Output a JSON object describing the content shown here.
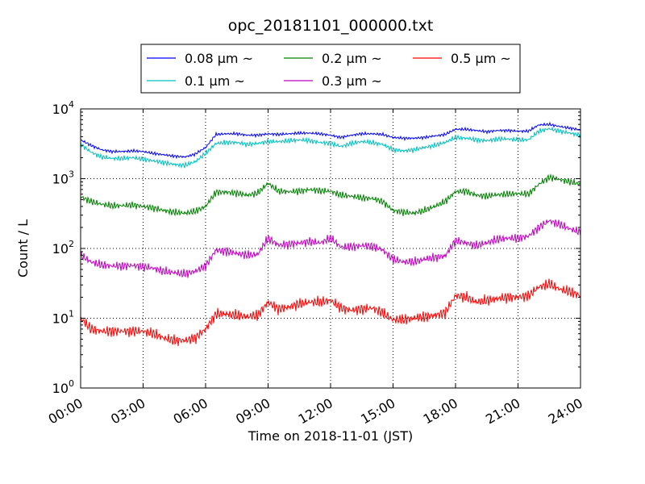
{
  "chart_data": {
    "type": "line",
    "title": "opc_20181101_000000.txt",
    "xlabel": "Time on 2018-11-01 (JST)",
    "ylabel": "Count / L",
    "x_unit": "hours",
    "xlim": [
      0,
      24
    ],
    "x_ticks": [
      {
        "value": 0,
        "label": "00:00"
      },
      {
        "value": 3,
        "label": "03:00"
      },
      {
        "value": 6,
        "label": "06:00"
      },
      {
        "value": 9,
        "label": "09:00"
      },
      {
        "value": 12,
        "label": "12:00"
      },
      {
        "value": 15,
        "label": "15:00"
      },
      {
        "value": 18,
        "label": "18:00"
      },
      {
        "value": 21,
        "label": "21:00"
      },
      {
        "value": 24,
        "label": "24:00"
      }
    ],
    "yscale": "log",
    "ylim": [
      1,
      10000
    ],
    "y_ticks": [
      {
        "value": 1,
        "base": "10",
        "exp": "0"
      },
      {
        "value": 10,
        "base": "10",
        "exp": "1"
      },
      {
        "value": 100,
        "base": "10",
        "exp": "2"
      },
      {
        "value": 1000,
        "base": "10",
        "exp": "3"
      },
      {
        "value": 10000,
        "base": "10",
        "exp": "4"
      }
    ],
    "grid": true,
    "legend_position": "top",
    "x": [
      0,
      0.5,
      1,
      1.5,
      2,
      2.5,
      3,
      3.5,
      4,
      4.5,
      5,
      5.5,
      6,
      6.5,
      7,
      7.5,
      8,
      8.5,
      9,
      9.5,
      10,
      10.5,
      11,
      11.5,
      12,
      12.5,
      13,
      13.5,
      14,
      14.5,
      15,
      15.5,
      16,
      16.5,
      17,
      17.5,
      18,
      18.5,
      19,
      19.5,
      20,
      20.5,
      21,
      21.5,
      22,
      22.5,
      23,
      23.5,
      24
    ],
    "series": [
      {
        "name": "0.08 μm ~",
        "color": "#0000ff",
        "values": [
          3600,
          3000,
          2600,
          2450,
          2450,
          2500,
          2450,
          2300,
          2200,
          2100,
          2050,
          2250,
          2800,
          4300,
          4400,
          4400,
          4200,
          4200,
          4400,
          4300,
          4400,
          4500,
          4500,
          4400,
          4200,
          3900,
          4200,
          4400,
          4400,
          4300,
          3900,
          3800,
          3800,
          3900,
          4100,
          4300,
          5100,
          5100,
          4900,
          4700,
          4900,
          4900,
          4800,
          4800,
          5900,
          6000,
          5600,
          5300,
          5000
        ]
      },
      {
        "name": "0.1 μm ~",
        "color": "#00bfbf",
        "values": [
          3100,
          2400,
          2050,
          1950,
          1950,
          2000,
          1900,
          1800,
          1700,
          1600,
          1550,
          1750,
          2300,
          3200,
          3300,
          3300,
          3100,
          3200,
          3400,
          3400,
          3500,
          3600,
          3500,
          3300,
          3200,
          2900,
          3200,
          3400,
          3300,
          3100,
          2600,
          2500,
          2600,
          2800,
          3000,
          3300,
          3900,
          3800,
          3600,
          3500,
          3700,
          3700,
          3600,
          3600,
          4800,
          5200,
          4800,
          4500,
          4200
        ]
      },
      {
        "name": "0.2 μm ~",
        "color": "#008000",
        "values": [
          550,
          470,
          430,
          410,
          410,
          420,
          400,
          380,
          350,
          330,
          320,
          340,
          400,
          640,
          640,
          620,
          580,
          620,
          860,
          660,
          650,
          660,
          700,
          670,
          660,
          580,
          560,
          530,
          520,
          470,
          350,
          330,
          320,
          350,
          400,
          470,
          650,
          660,
          580,
          560,
          590,
          600,
          610,
          600,
          830,
          1050,
          970,
          900,
          830
        ]
      },
      {
        "name": "0.3 μm ~",
        "color": "#bf00bf",
        "values": [
          80,
          64,
          58,
          56,
          56,
          57,
          55,
          52,
          47,
          45,
          43,
          47,
          56,
          95,
          90,
          85,
          80,
          82,
          140,
          112,
          115,
          120,
          125,
          120,
          140,
          105,
          105,
          110,
          108,
          95,
          70,
          64,
          64,
          70,
          74,
          78,
          130,
          120,
          110,
          120,
          135,
          140,
          140,
          150,
          200,
          250,
          220,
          190,
          170
        ]
      },
      {
        "name": "0.5 μm ~",
        "color": "#ff0000",
        "values": [
          10,
          7,
          6.5,
          6.5,
          6.5,
          6.5,
          6.5,
          6,
          5.2,
          4.8,
          4.8,
          5.2,
          7,
          11.5,
          11.5,
          11,
          10.5,
          11,
          17,
          13.5,
          14.5,
          16,
          17,
          17,
          18,
          14,
          13,
          13.5,
          14,
          12,
          9.5,
          9.5,
          10,
          10.5,
          11,
          12,
          21,
          20,
          17,
          18,
          19,
          20,
          20,
          21,
          28,
          31,
          26,
          24,
          21
        ]
      }
    ]
  }
}
